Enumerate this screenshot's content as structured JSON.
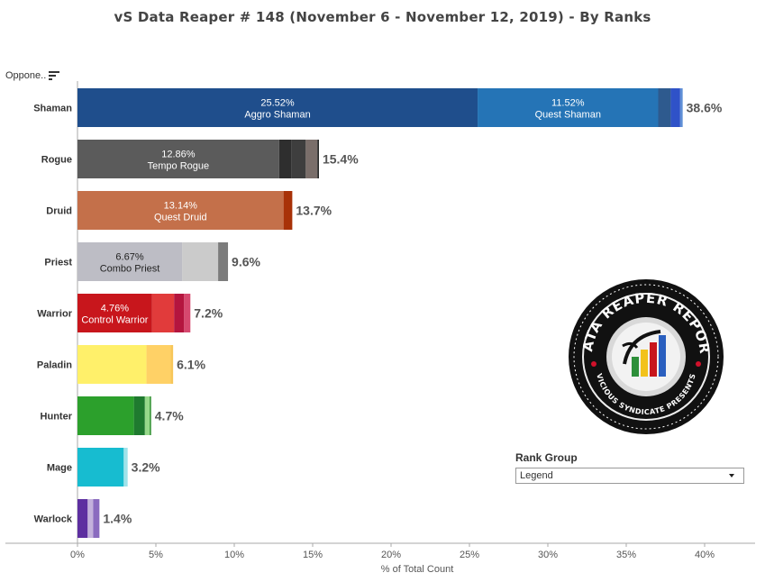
{
  "chart_data": {
    "type": "bar",
    "orientation": "horizontal",
    "stacked": true,
    "title": "vS Data Reaper #  148 (November 6 - November 12, 2019) - By Ranks",
    "xlabel": "% of Total Count",
    "ylabel": "Oppone..",
    "xlim": [
      0,
      42
    ],
    "xticks": [
      {
        "value": 0,
        "label": "0%"
      },
      {
        "value": 5,
        "label": "5%"
      },
      {
        "value": 10,
        "label": "10%"
      },
      {
        "value": 15,
        "label": "15%"
      },
      {
        "value": 20,
        "label": "20%"
      },
      {
        "value": 25,
        "label": "25%"
      },
      {
        "value": 30,
        "label": "30%"
      },
      {
        "value": 35,
        "label": "35%"
      },
      {
        "value": 40,
        "label": "40%"
      }
    ],
    "grid": false,
    "categories": [
      "Shaman",
      "Rogue",
      "Druid",
      "Priest",
      "Warrior",
      "Paladin",
      "Hunter",
      "Mage",
      "Warlock"
    ],
    "rows": [
      {
        "category": "Shaman",
        "total_label": "38.6%",
        "segments": [
          {
            "value": 25.52,
            "color": "#1f4e8c",
            "pct_label": "25.52%",
            "name": "Aggro Shaman"
          },
          {
            "value": 11.52,
            "color": "#2574b6",
            "pct_label": "11.52%",
            "name": "Quest Shaman"
          },
          {
            "value": 0.8,
            "color": "#2e5a8e"
          },
          {
            "value": 0.6,
            "color": "#2f52c8"
          },
          {
            "value": 0.16,
            "color": "#5f8fd6"
          }
        ]
      },
      {
        "category": "Rogue",
        "total_label": "15.4%",
        "segments": [
          {
            "value": 12.86,
            "color": "#5b5b5b",
            "pct_label": "12.86%",
            "name": "Tempo Rogue"
          },
          {
            "value": 0.8,
            "color": "#2e2e2e"
          },
          {
            "value": 0.9,
            "color": "#3e3e3e"
          },
          {
            "value": 0.74,
            "color": "#7a6e6a"
          },
          {
            "value": 0.1,
            "color": "#222222"
          }
        ]
      },
      {
        "category": "Druid",
        "total_label": "13.7%",
        "segments": [
          {
            "value": 13.14,
            "color": "#c4704a",
            "pct_label": "13.14%",
            "name": "Quest Druid"
          },
          {
            "value": 0.56,
            "color": "#a83208"
          }
        ]
      },
      {
        "category": "Priest",
        "total_label": "9.6%",
        "segments": [
          {
            "value": 6.67,
            "color": "#bdbdc5",
            "pct_label": "6.67%",
            "name": "Combo Priest"
          },
          {
            "value": 2.3,
            "color": "#cbcbcb"
          },
          {
            "value": 0.63,
            "color": "#7c7c7c"
          }
        ]
      },
      {
        "category": "Warrior",
        "total_label": "7.2%",
        "segments": [
          {
            "value": 4.76,
            "color": "#c8161c",
            "pct_label": "4.76%",
            "name": "Control Warrior"
          },
          {
            "value": 1.4,
            "color": "#e13b3b"
          },
          {
            "value": 0.64,
            "color": "#b4153e"
          },
          {
            "value": 0.4,
            "color": "#d6486e"
          }
        ]
      },
      {
        "category": "Paladin",
        "total_label": "6.1%",
        "segments": [
          {
            "value": 4.4,
            "color": "#fff06a"
          },
          {
            "value": 1.55,
            "color": "#ffd166"
          },
          {
            "value": 0.15,
            "color": "#f7c65a"
          }
        ]
      },
      {
        "category": "Hunter",
        "total_label": "4.7%",
        "segments": [
          {
            "value": 3.6,
            "color": "#2ca02c"
          },
          {
            "value": 0.7,
            "color": "#1f7a2f"
          },
          {
            "value": 0.3,
            "color": "#97d98a"
          },
          {
            "value": 0.1,
            "color": "#3f9a3f"
          }
        ]
      },
      {
        "category": "Mage",
        "total_label": "3.2%",
        "segments": [
          {
            "value": 2.95,
            "color": "#17bcd0"
          },
          {
            "value": 0.25,
            "color": "#9ee3ea"
          }
        ]
      },
      {
        "category": "Warlock",
        "total_label": "1.4%",
        "segments": [
          {
            "value": 0.65,
            "color": "#5d2fa0"
          },
          {
            "value": 0.35,
            "color": "#c3b1dc"
          },
          {
            "value": 0.4,
            "color": "#8a6bbf"
          }
        ]
      }
    ],
    "legend": {
      "title": "Rank Group",
      "selected": "Legend",
      "position": "bottom-right"
    }
  },
  "logo": {
    "top_text": "DATA REAPER REPORT",
    "bottom_text": "VICIOUS SYNDICATE PRESENTS"
  }
}
